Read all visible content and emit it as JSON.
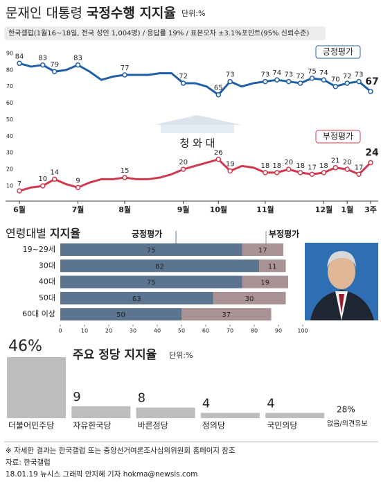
{
  "chart_data": [
    {
      "type": "line",
      "title": "문재인 대통령",
      "title_bold": "국정수행 지지율",
      "unit": "단위:%",
      "subtitle": "한국갤럽(1월16~18일, 전국 성인 1,004명) / 응답률 19% / 표본오차 ±3.1%포인트(95% 신뢰수준)",
      "watermark": "청 와 대",
      "categories": [
        "6월",
        null,
        null,
        null,
        null,
        "7월",
        null,
        null,
        null,
        "8월",
        null,
        null,
        null,
        null,
        "9월",
        null,
        null,
        "10월",
        null,
        null,
        null,
        "11월",
        null,
        null,
        null,
        null,
        "12월",
        null,
        "1월",
        null,
        "3주"
      ],
      "series": [
        {
          "name": "긍정평가",
          "color": "#1f5fa8",
          "values": [
            84,
            82,
            83,
            79,
            80,
            83,
            79,
            74,
            76,
            77,
            77,
            77,
            78,
            78,
            72,
            72,
            70,
            65,
            73,
            70,
            72,
            73,
            74,
            73,
            72,
            75,
            74,
            70,
            72,
            73,
            67
          ],
          "value_labels": [
            "84",
            null,
            "83",
            "79",
            null,
            "83",
            null,
            null,
            null,
            "77",
            null,
            null,
            null,
            null,
            "72",
            null,
            null,
            "65",
            "73",
            null,
            null,
            "73",
            "74",
            "73",
            "72",
            "75",
            "74",
            "70",
            "72",
            "73",
            "67"
          ]
        },
        {
          "name": "부정평가",
          "color": "#d0384e",
          "values": [
            7,
            9,
            10,
            14,
            11,
            9,
            12,
            14,
            14,
            15,
            14,
            14,
            15,
            17,
            20,
            22,
            24,
            26,
            19,
            22,
            21,
            18,
            18,
            20,
            18,
            17,
            18,
            21,
            20,
            17,
            24
          ],
          "value_labels": [
            "7",
            null,
            "10",
            "14",
            null,
            "9",
            null,
            null,
            null,
            "15",
            null,
            null,
            null,
            null,
            "20",
            null,
            null,
            "26",
            "19",
            null,
            null,
            "18",
            "18",
            "20",
            "18",
            "17",
            "18",
            "21",
            "20",
            "17",
            "24"
          ]
        }
      ],
      "ylim": [
        4,
        92
      ],
      "yticks": [
        10,
        20,
        30,
        40,
        50,
        60,
        70,
        80,
        90
      ],
      "grid": false
    },
    {
      "type": "bar",
      "orientation": "horizontal",
      "stacked": true,
      "title": "연령대별",
      "title_bold": "지지율",
      "categories": [
        "19~29세",
        "30대",
        "40대",
        "50대",
        "60대 이상"
      ],
      "series": [
        {
          "name": "긍정평가",
          "color": "#5b7590",
          "values": [
            75,
            82,
            75,
            63,
            50
          ]
        },
        {
          "name": "부정평가",
          "color": "#a89294",
          "values": [
            17,
            11,
            19,
            30,
            37
          ]
        }
      ],
      "xlim": [
        0,
        100
      ],
      "xticks": [
        0,
        10,
        20,
        30,
        40,
        50,
        60,
        70,
        80,
        90,
        100
      ]
    },
    {
      "type": "bar",
      "orientation": "vertical",
      "title": "주요 정당 지지율",
      "unit": "단위:%",
      "categories": [
        "더불어민주당",
        "자유한국당",
        "바른정당",
        "정의당",
        "국민의당"
      ],
      "values": [
        46,
        9,
        8,
        4,
        4
      ],
      "value_labels": [
        "46%",
        "9",
        "8",
        "4",
        "4"
      ],
      "label_colors": [
        "#1f5fa8",
        "#d0202e",
        "#2a9ad6",
        "#e8b400",
        "#3a8a3a"
      ],
      "color": "#bdbdbd",
      "ylim": [
        0,
        46
      ],
      "other": {
        "name": "없음/의견유보",
        "value": 28,
        "value_label": "28%"
      }
    }
  ],
  "footer": {
    "note": "※ 자세한 결과는 한국갤럽 또는 중앙선거여론조사심의위원회 홈페이지 참조",
    "source": "자료: 한국갤럽",
    "credit": "18.01.19 뉴시스 그래픽 안지혜 기자 hokma@newsis.com"
  }
}
